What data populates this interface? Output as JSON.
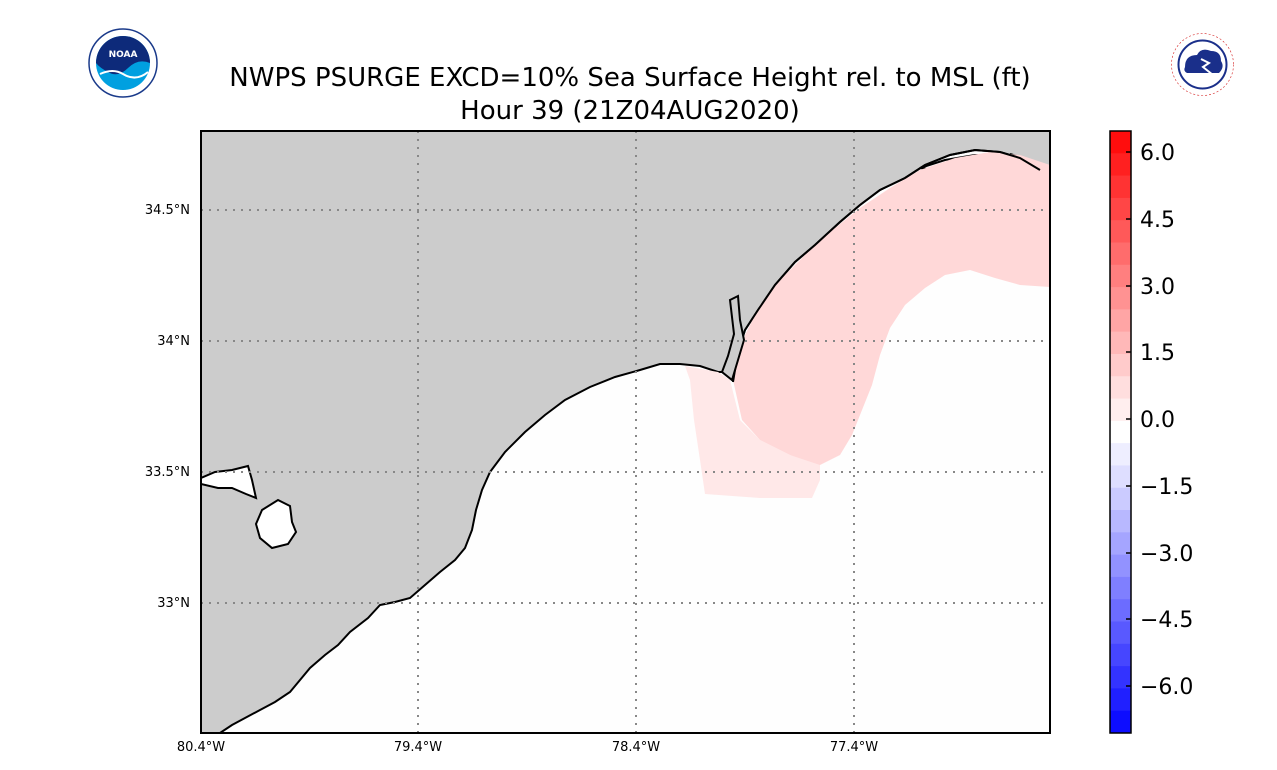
{
  "header": {
    "title": "NWPS PSURGE EXCD=10% Sea Surface Height rel. to MSL (ft)",
    "subtitle": "Hour 39 (21Z04AUG2020)"
  },
  "logos": {
    "left": {
      "text": "NOAA",
      "icon": "noaa-logo-icon"
    },
    "right": {
      "text": "NATIONAL WEATHER SERVICE",
      "icon": "nws-logo-icon"
    }
  },
  "map": {
    "lat_labels": [
      "34.5°N",
      "34°N",
      "33.5°N",
      "33°N"
    ],
    "lon_labels": [
      "80.4°W",
      "79.4°W",
      "78.4°W",
      "77.4°W"
    ],
    "land_color": "#cccccc",
    "water_color": "#fefefe",
    "surge_colors": {
      "light": "#ffe3e3",
      "medium": "#ffd6d6"
    }
  },
  "colorbar": {
    "tick_labels": [
      "6.0",
      "4.5",
      "3.0",
      "1.5",
      "0.0",
      "−1.5",
      "−3.0",
      "−4.5",
      "−6.0"
    ],
    "colors_top_to_bottom": [
      "#ff0d0d",
      "#ff2020",
      "#ff3333",
      "#ff4646",
      "#ff5959",
      "#ff6c6c",
      "#ff7f7f",
      "#ff9292",
      "#ffa5a5",
      "#ffb8b8",
      "#ffcbcb",
      "#ffdede",
      "#ffeeee",
      "#ffffff",
      "#eeeeff",
      "#dedeff",
      "#cbcbff",
      "#b8b8ff",
      "#a5a5ff",
      "#9292ff",
      "#7f7fff",
      "#6c6cff",
      "#5959ff",
      "#4646ff",
      "#3333ff",
      "#2020ff",
      "#0d0dff"
    ]
  }
}
